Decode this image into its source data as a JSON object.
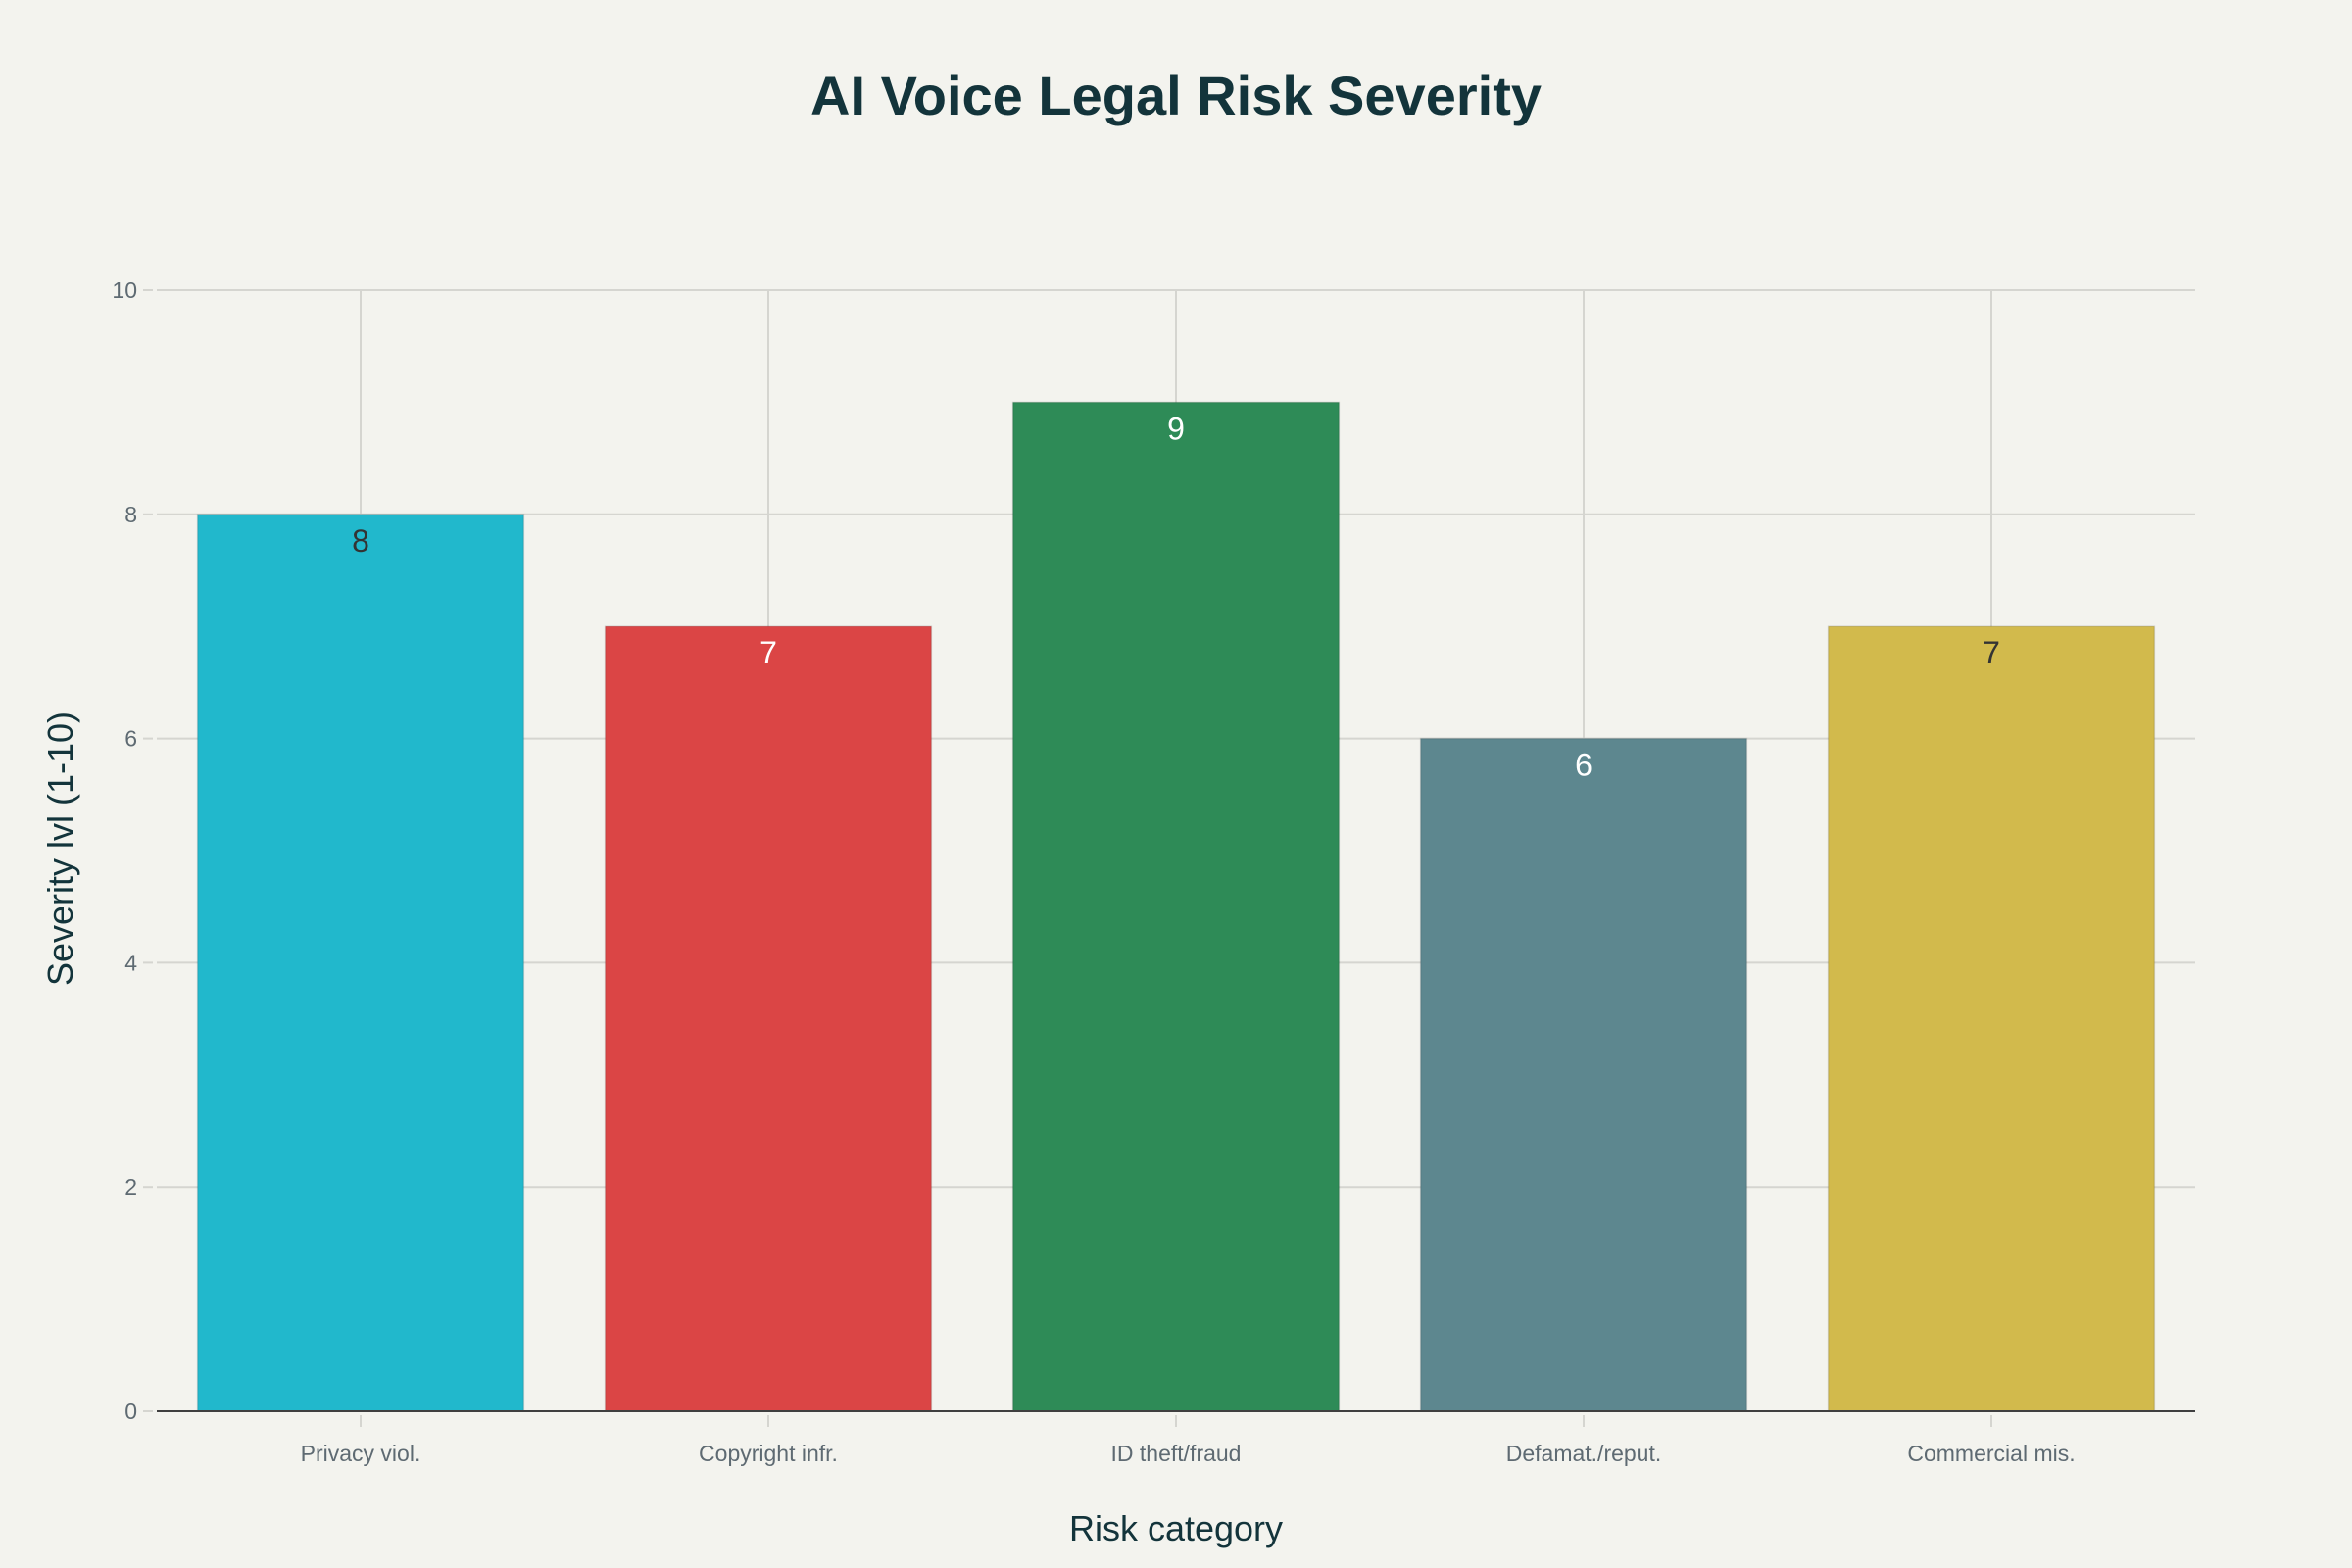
{
  "chart_data": {
    "type": "bar",
    "title": "AI Voice Legal Risk Severity",
    "xlabel": "Risk category",
    "ylabel": "Severity lvl (1-10)",
    "categories": [
      "Privacy viol.",
      "Copyright infr.",
      "ID theft/fraud",
      "Defamat./reput.",
      "Commercial mis."
    ],
    "values": [
      8,
      7,
      9,
      6,
      7
    ],
    "colors": [
      "#21B8CC",
      "#DB4545",
      "#2E8B57",
      "#5D878F",
      "#D2BA4C"
    ],
    "label_colors": [
      "#333333",
      "#FFFFFF",
      "#FFFFFF",
      "#FFFFFF",
      "#333333"
    ],
    "ylim": [
      0,
      10
    ],
    "yticks": [
      0,
      2,
      4,
      6,
      8,
      10
    ],
    "grid": true,
    "legend": "none"
  }
}
